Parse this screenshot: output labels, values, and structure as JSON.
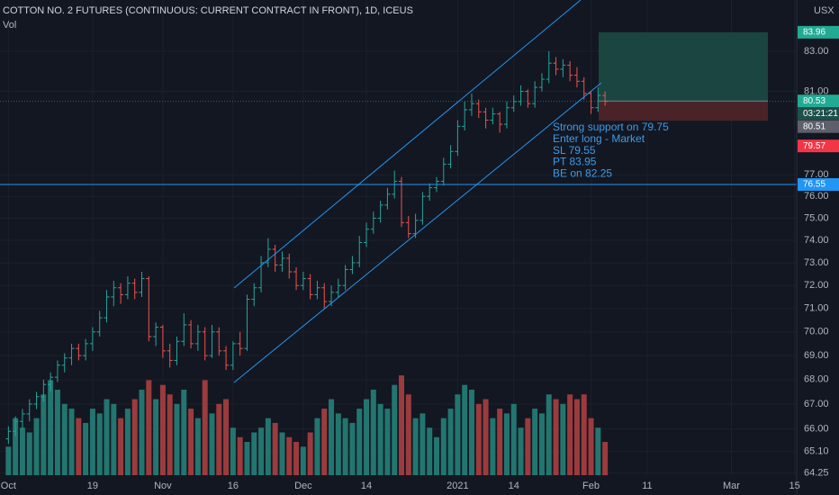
{
  "chart_data": {
    "type": "ohlc",
    "title": "COTTON NO. 2 FUTURES (CONTINUOUS: CURRENT CONTRACT IN FRONT), 1D, ICEUS",
    "subtitle": "Vol",
    "currency": "USX",
    "log_scale": true,
    "grid": true,
    "up_color": "#26a69a",
    "down_color": "#ef5350",
    "volume_up_color": "#22766f",
    "volume_down_color": "#9c3b3d",
    "open": [
      65.6,
      65.9,
      66.3,
      66.6,
      67.0,
      67.3,
      67.8,
      68.1,
      68.6,
      68.9,
      69.3,
      69.0,
      69.5,
      70.0,
      70.6,
      71.5,
      71.9,
      71.6,
      72.1,
      71.7,
      72.3,
      69.8,
      70.2,
      69.2,
      68.8,
      69.6,
      70.3,
      69.5,
      70.0,
      69.0,
      70.0,
      69.2,
      68.6,
      69.5,
      69.3,
      71.4,
      71.9,
      73.0,
      73.6,
      72.9,
      73.2,
      72.6,
      72.0,
      72.3,
      71.6,
      71.9,
      71.3,
      71.7,
      72.0,
      72.7,
      73.0,
      73.9,
      74.5,
      75.0,
      75.6,
      76.1,
      76.7,
      74.8,
      74.3,
      74.9,
      76.0,
      76.4,
      76.7,
      77.5,
      78.1,
      79.3,
      80.1,
      80.4,
      80.0,
      79.6,
      79.9,
      79.4,
      80.2,
      80.5,
      81.0,
      80.4,
      81.2,
      81.6,
      82.4,
      82.1,
      82.3,
      81.8,
      81.5,
      80.9,
      80.2,
      80.8
    ],
    "high": [
      66.1,
      66.5,
      66.8,
      67.2,
      67.5,
      68.0,
      68.3,
      68.8,
      69.1,
      69.5,
      69.5,
      69.7,
      70.2,
      70.9,
      71.8,
      72.2,
      72.1,
      72.4,
      72.3,
      72.6,
      72.4,
      70.4,
      70.3,
      69.5,
      69.8,
      70.8,
      70.5,
      70.3,
      70.2,
      70.3,
      70.2,
      69.4,
      69.6,
      70.0,
      71.6,
      72.1,
      73.3,
      74.1,
      73.8,
      73.5,
      73.4,
      72.8,
      72.6,
      72.5,
      72.2,
      72.1,
      72.0,
      72.3,
      72.9,
      73.3,
      74.2,
      74.8,
      75.3,
      75.8,
      76.4,
      77.2,
      76.9,
      75.1,
      75.2,
      76.2,
      76.6,
      76.9,
      77.8,
      78.4,
      79.6,
      80.5,
      80.9,
      80.6,
      80.2,
      80.2,
      80.0,
      80.5,
      80.8,
      81.3,
      81.1,
      81.5,
      81.9,
      83.0,
      82.7,
      82.6,
      82.5,
      82.2,
      81.7,
      81.0,
      81.2,
      81.0
    ],
    "low": [
      65.4,
      65.7,
      66.0,
      66.3,
      66.8,
      67.1,
      67.5,
      67.9,
      68.3,
      68.6,
      68.8,
      68.8,
      69.2,
      69.8,
      70.4,
      71.1,
      71.2,
      71.4,
      71.4,
      71.5,
      69.6,
      69.4,
      68.9,
      68.5,
      68.6,
      69.4,
      69.3,
      69.2,
      68.8,
      68.9,
      69.0,
      68.4,
      68.4,
      69.0,
      69.2,
      71.1,
      71.7,
      72.8,
      72.6,
      72.6,
      72.3,
      71.8,
      71.8,
      71.4,
      71.4,
      71.0,
      71.1,
      71.5,
      71.8,
      72.5,
      72.8,
      73.7,
      74.3,
      74.8,
      75.4,
      75.9,
      74.6,
      74.1,
      74.1,
      74.7,
      75.8,
      76.2,
      76.5,
      77.3,
      77.9,
      79.1,
      79.8,
      79.7,
      79.2,
      79.4,
      79.0,
      79.2,
      80.0,
      80.3,
      80.2,
      80.2,
      81.0,
      81.4,
      81.8,
      81.7,
      81.5,
      81.2,
      80.6,
      79.9,
      80.0,
      80.3
    ],
    "close": [
      65.9,
      66.3,
      66.6,
      67.0,
      67.3,
      67.8,
      68.1,
      68.6,
      68.9,
      69.3,
      69.0,
      69.5,
      70.0,
      70.6,
      71.5,
      71.9,
      71.6,
      72.1,
      71.7,
      72.3,
      69.8,
      70.2,
      69.2,
      68.8,
      69.6,
      70.3,
      69.5,
      70.0,
      69.0,
      70.0,
      69.2,
      68.6,
      69.5,
      69.3,
      71.4,
      71.9,
      73.0,
      73.6,
      72.9,
      73.2,
      72.6,
      72.0,
      72.3,
      71.6,
      71.9,
      71.3,
      71.7,
      72.0,
      72.7,
      73.0,
      73.9,
      74.5,
      75.0,
      75.6,
      76.1,
      76.7,
      74.8,
      74.3,
      74.9,
      76.0,
      76.4,
      76.7,
      77.5,
      78.1,
      79.3,
      80.1,
      80.4,
      80.0,
      79.6,
      79.9,
      79.4,
      80.2,
      80.5,
      81.0,
      80.4,
      81.2,
      81.6,
      82.4,
      82.1,
      82.3,
      81.8,
      81.5,
      80.9,
      80.2,
      80.8,
      80.51
    ],
    "volume": [
      6,
      12,
      10,
      9,
      12,
      17,
      20,
      18,
      15,
      14,
      12,
      11,
      14,
      13,
      16,
      15,
      12,
      14,
      16,
      18,
      20,
      16,
      19,
      17,
      15,
      18,
      14,
      12,
      20,
      13,
      15,
      16,
      10,
      8,
      7,
      9,
      10,
      12,
      11,
      9,
      8,
      7,
      6,
      9,
      12,
      14,
      16,
      13,
      12,
      11,
      14,
      16,
      18,
      15,
      14,
      19,
      21,
      17,
      12,
      13,
      10,
      8,
      12,
      14,
      17,
      19,
      18,
      15,
      16,
      12,
      14,
      13,
      15,
      10,
      12,
      14,
      13,
      17,
      16,
      15,
      17,
      16,
      17,
      12,
      10,
      7
    ],
    "volume_lim": [
      0,
      100
    ],
    "xlim": [
      -1.2,
      112.3
    ],
    "xticks": [
      {
        "value": 0,
        "label": "Oct"
      },
      {
        "value": 12,
        "label": "19"
      },
      {
        "value": 22,
        "label": "Nov"
      },
      {
        "value": 32,
        "label": "16"
      },
      {
        "value": 42,
        "label": "Dec"
      },
      {
        "value": 51,
        "label": "14"
      },
      {
        "value": 64,
        "label": "2021"
      },
      {
        "value": 72,
        "label": "14"
      },
      {
        "value": 83,
        "label": "Feb"
      },
      {
        "value": 91,
        "label": "11"
      },
      {
        "value": 103,
        "label": "Mar"
      },
      {
        "value": 112,
        "label": "15"
      }
    ],
    "ylim": [
      63.75,
      85.62
    ],
    "yticks": [
      {
        "value": 83,
        "label": "83.00"
      },
      {
        "value": 81,
        "label": "81.00"
      },
      {
        "value": 77,
        "label": "77.00"
      },
      {
        "value": 76,
        "label": "76.00"
      },
      {
        "value": 75,
        "label": "75.00"
      },
      {
        "value": 74,
        "label": "74.00"
      },
      {
        "value": 73,
        "label": "73.00"
      },
      {
        "value": 72,
        "label": "72.00"
      },
      {
        "value": 71,
        "label": "71.00"
      },
      {
        "value": 70,
        "label": "70.00"
      },
      {
        "value": 69,
        "label": "69.00"
      },
      {
        "value": 68,
        "label": "68.00"
      },
      {
        "value": 67,
        "label": "67.00"
      },
      {
        "value": 66,
        "label": "66.00"
      },
      {
        "value": 65.1,
        "label": "65.10"
      },
      {
        "value": 64.25,
        "label": "64.25"
      }
    ],
    "price_line": {
      "value": 76.55,
      "label": "76.55",
      "color": "#2196f3"
    },
    "position": {
      "entry": 80.53,
      "entry_label": "80.53",
      "target": 83.96,
      "target_label": "83.96",
      "stop": 79.57,
      "stop_label": "79.57",
      "target_color": "#1a4540",
      "stop_color": "#4a2328"
    },
    "last_price": {
      "value": 80.51,
      "label": "80.51",
      "countdown": "03:21:21"
    },
    "annotation": [
      "Strong support on 79.75",
      "Enter long - Market",
      "SL 79.55",
      "PT 83.95",
      "BE on 82.25"
    ]
  }
}
